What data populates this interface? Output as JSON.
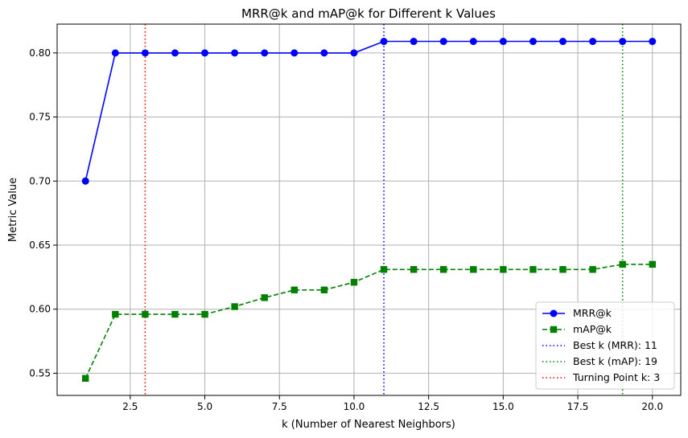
{
  "chart_data": {
    "type": "line",
    "title": "MRR@k and mAP@k for Different k Values",
    "xlabel": "k (Number of Nearest Neighbors)",
    "ylabel": "Metric Value",
    "xlim": [
      0.05,
      20.95
    ],
    "ylim": [
      0.5327,
      0.8225
    ],
    "xticks": [
      2.5,
      5.0,
      7.5,
      10.0,
      12.5,
      15.0,
      17.5,
      20.0
    ],
    "xtick_labels": [
      "2.5",
      "5.0",
      "7.5",
      "10.0",
      "12.5",
      "15.0",
      "17.5",
      "20.0"
    ],
    "yticks": [
      0.55,
      0.6,
      0.65,
      0.7,
      0.75,
      0.8
    ],
    "ytick_labels": [
      "0.55",
      "0.60",
      "0.65",
      "0.70",
      "0.75",
      "0.80"
    ],
    "grid": true,
    "legend_position": "lower-right",
    "x": [
      1,
      2,
      3,
      4,
      5,
      6,
      7,
      8,
      9,
      10,
      11,
      12,
      13,
      14,
      15,
      16,
      17,
      18,
      19,
      20
    ],
    "series": [
      {
        "name": "MRR@k",
        "color": "#0000ff",
        "line_style": "solid",
        "marker": "circle",
        "values": [
          0.7,
          0.8,
          0.8,
          0.8,
          0.8,
          0.8,
          0.8,
          0.8,
          0.8,
          0.8,
          0.809,
          0.809,
          0.809,
          0.809,
          0.809,
          0.809,
          0.809,
          0.809,
          0.809,
          0.809
        ]
      },
      {
        "name": "mAP@k",
        "color": "#008000",
        "line_style": "dashed",
        "marker": "square",
        "values": [
          0.546,
          0.596,
          0.596,
          0.596,
          0.596,
          0.602,
          0.609,
          0.615,
          0.615,
          0.621,
          0.631,
          0.631,
          0.631,
          0.631,
          0.631,
          0.631,
          0.631,
          0.631,
          0.635,
          0.635
        ]
      }
    ],
    "vlines": [
      {
        "name": "Best k (MRR): 11",
        "x": 11,
        "color": "#0000ff"
      },
      {
        "name": "Best k (mAP): 19",
        "x": 19,
        "color": "#008000"
      },
      {
        "name": "Turning Point k: 3",
        "x": 3,
        "color": "#ff0000"
      }
    ]
  }
}
